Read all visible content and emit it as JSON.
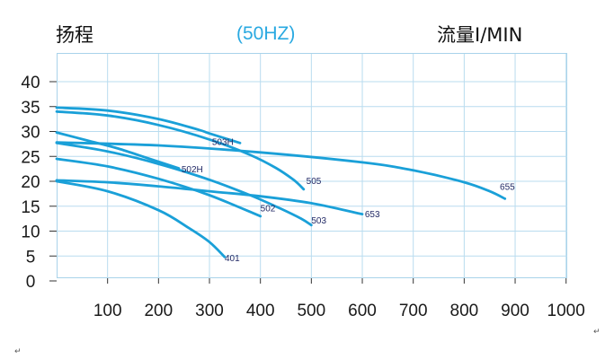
{
  "header": {
    "left_title": "扬程",
    "center_title": "(50HZ)",
    "right_title": "流量I/MIN"
  },
  "colors": {
    "curve": "#1aa0d8",
    "grid": "#b9dcef",
    "frequency_label": "#29a9e1",
    "curve_label": "#222a66"
  },
  "paragraph_marks": [
    "↵",
    "↵"
  ],
  "chart_data": {
    "type": "line",
    "title": "",
    "xlabel": "流量I/MIN",
    "ylabel": "扬程",
    "xlim": [
      0,
      1000
    ],
    "ylim": [
      0,
      45
    ],
    "x_ticks": [
      100,
      200,
      300,
      400,
      500,
      600,
      700,
      800,
      900,
      1000
    ],
    "y_ticks": [
      0,
      5,
      10,
      15,
      20,
      25,
      30,
      35,
      40
    ],
    "grid": true,
    "legend": "none",
    "series": [
      {
        "name": "503H",
        "label_at": [
          305,
          27.3
        ],
        "points": [
          [
            0,
            34.8
          ],
          [
            100,
            34.2
          ],
          [
            200,
            32.5
          ],
          [
            280,
            30.3
          ],
          [
            300,
            29.6
          ],
          [
            360,
            27.7
          ]
        ]
      },
      {
        "name": "505",
        "label_at": [
          490,
          19.5
        ],
        "points": [
          [
            0,
            34.0
          ],
          [
            100,
            33.2
          ],
          [
            200,
            31.3
          ],
          [
            300,
            28.4
          ],
          [
            380,
            25.3
          ],
          [
            430,
            22.7
          ],
          [
            465,
            20.3
          ],
          [
            485,
            18.4
          ]
        ]
      },
      {
        "name": "502H",
        "label_at": [
          245,
          21.8
        ],
        "points": [
          [
            0,
            29.8
          ],
          [
            60,
            28.2
          ],
          [
            120,
            26.6
          ],
          [
            180,
            24.6
          ],
          [
            240,
            22.6
          ]
        ]
      },
      {
        "name": "655",
        "label_at": [
          870,
          18.3
        ],
        "points": [
          [
            0,
            27.8
          ],
          [
            200,
            27.2
          ],
          [
            400,
            25.8
          ],
          [
            600,
            23.8
          ],
          [
            700,
            22.2
          ],
          [
            800,
            19.8
          ],
          [
            850,
            18.0
          ],
          [
            880,
            16.5
          ]
        ]
      },
      {
        "name": "502",
        "label_at": [
          400,
          14.0
        ],
        "points": [
          [
            0,
            24.5
          ],
          [
            100,
            23.0
          ],
          [
            200,
            20.5
          ],
          [
            300,
            17.2
          ],
          [
            400,
            13.0
          ]
        ]
      },
      {
        "name": "503",
        "label_at": [
          500,
          11.5
        ],
        "points": [
          [
            0,
            27.7
          ],
          [
            100,
            26.0
          ],
          [
            200,
            23.5
          ],
          [
            300,
            20.3
          ],
          [
            380,
            17.2
          ],
          [
            440,
            14.5
          ],
          [
            480,
            12.5
          ],
          [
            500,
            11.2
          ]
        ]
      },
      {
        "name": "653",
        "label_at": [
          605,
          12.8
        ],
        "points": [
          [
            0,
            20.2
          ],
          [
            100,
            19.8
          ],
          [
            200,
            19.0
          ],
          [
            300,
            18.0
          ],
          [
            400,
            17.0
          ],
          [
            500,
            15.6
          ],
          [
            600,
            13.4
          ]
        ]
      },
      {
        "name": "401",
        "label_at": [
          330,
          4.0
        ],
        "points": [
          [
            0,
            20.0
          ],
          [
            100,
            18.0
          ],
          [
            200,
            14.2
          ],
          [
            260,
            10.6
          ],
          [
            300,
            7.8
          ],
          [
            330,
            4.8
          ]
        ]
      }
    ]
  }
}
